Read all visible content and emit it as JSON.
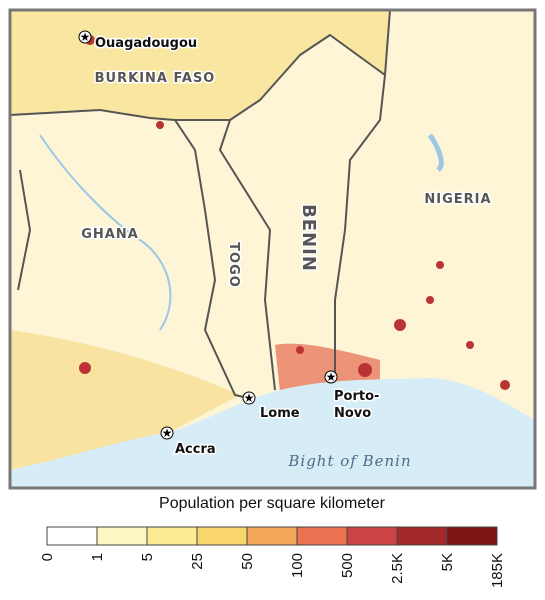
{
  "map": {
    "countries": [
      "BURKINA FASO",
      "GHANA",
      "TOGO",
      "BENIN",
      "NIGERIA"
    ],
    "cities": [
      {
        "lines": [
          "Ouagadougou"
        ]
      },
      {
        "lines": [
          "Lome"
        ]
      },
      {
        "lines": [
          "Porto-",
          "Novo"
        ]
      },
      {
        "lines": [
          "Accra"
        ]
      }
    ],
    "water": "Bight of Benin"
  },
  "legend": {
    "title": "Population per square kilometer",
    "labels": [
      "0",
      "1",
      "5",
      "25",
      "50",
      "100",
      "500",
      "2.5K",
      "5K",
      "185K"
    ],
    "colors": [
      "#ffffff",
      "#fdf7c4",
      "#fbeb93",
      "#f8d66b",
      "#f4a85a",
      "#ec7352",
      "#cc4444",
      "#a22a2a",
      "#7d1515"
    ]
  }
}
